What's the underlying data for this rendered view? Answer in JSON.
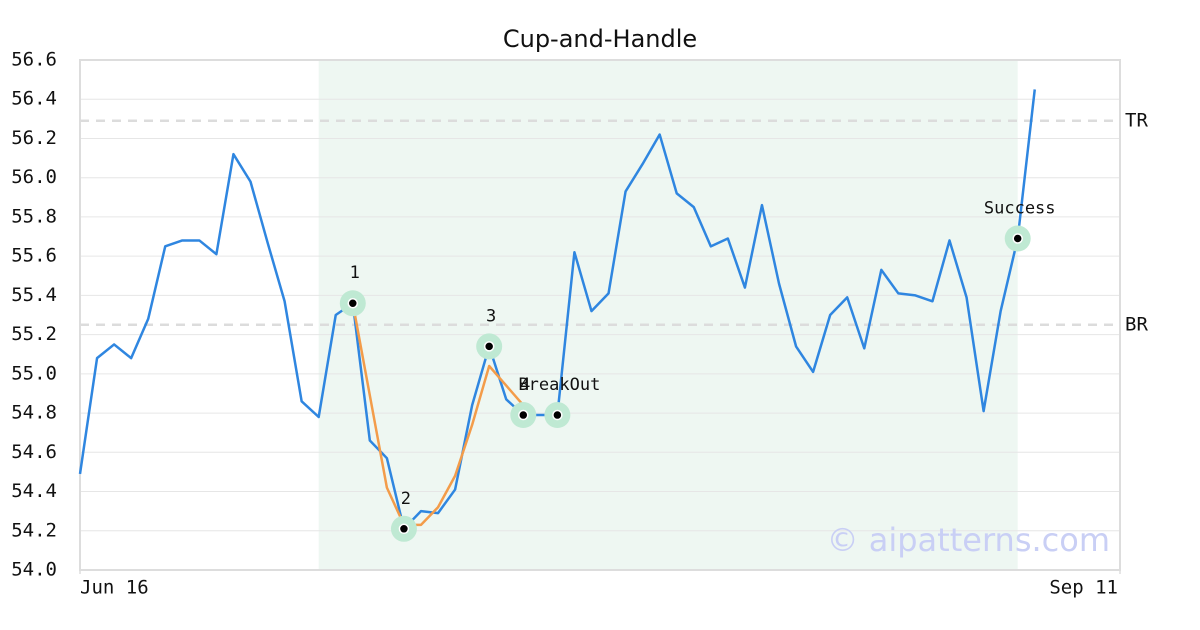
{
  "chart_data": {
    "type": "line",
    "title": "Cup-and-Handle",
    "watermark": "© aipatterns.com",
    "x": [
      0,
      1,
      2,
      3,
      4,
      5,
      6,
      7,
      8,
      9,
      10,
      11,
      12,
      13,
      14,
      15,
      16,
      17,
      18,
      19,
      20,
      21,
      22,
      23,
      24,
      25,
      26,
      27,
      28,
      29,
      30,
      31,
      32,
      33,
      34,
      35,
      36,
      37,
      38,
      39,
      40,
      41,
      42,
      43,
      44,
      45,
      46,
      47,
      48,
      49,
      50,
      51,
      52,
      53,
      54,
      55,
      56
    ],
    "xlim": [
      0,
      61
    ],
    "xticks": [
      {
        "value": 0,
        "label": "Jun 16"
      },
      {
        "value": 61,
        "label": "Sep 11"
      }
    ],
    "ylim": [
      54.0,
      56.6
    ],
    "yticks": [
      {
        "value": 54.0,
        "label": "54.0"
      },
      54.2,
      54.4,
      54.6,
      54.8,
      {
        "value": 55.0,
        "label": "55.0"
      },
      55.2,
      55.4,
      55.6,
      55.8,
      {
        "value": 56.0,
        "label": "56.0"
      },
      56.2,
      56.4,
      56.6
    ],
    "grid": true,
    "series": [
      {
        "color": "#2f86e0",
        "values": [
          54.49,
          55.08,
          55.15,
          55.08,
          55.28,
          55.65,
          55.68,
          55.68,
          55.61,
          56.12,
          55.98,
          55.67,
          55.37,
          54.86,
          54.78,
          55.3,
          55.36,
          54.66,
          54.57,
          54.21,
          54.3,
          54.29,
          54.41,
          54.84,
          55.14,
          54.87,
          54.79,
          54.79,
          54.79,
          55.62,
          55.32,
          55.41,
          55.93,
          56.07,
          56.22,
          55.92,
          55.85,
          55.65,
          55.69,
          55.44,
          55.86,
          55.46,
          55.14,
          55.01,
          55.3,
          55.39,
          55.13,
          55.53,
          55.41,
          55.4,
          55.37,
          55.68,
          55.39,
          54.81,
          55.32,
          55.69,
          56.45
        ]
      },
      {
        "color": "#f39c4a",
        "values": [
          null,
          null,
          null,
          null,
          null,
          null,
          null,
          null,
          null,
          null,
          null,
          null,
          null,
          null,
          null,
          null,
          55.36,
          54.89,
          54.42,
          54.23,
          54.23,
          54.32,
          54.48,
          54.74,
          55.04,
          54.94,
          54.84,
          null,
          null,
          null,
          null,
          null,
          null,
          null,
          null,
          null,
          null,
          null,
          null,
          null,
          null,
          null,
          null,
          null,
          null,
          null,
          null,
          null,
          null,
          null,
          null,
          null,
          null,
          null,
          null,
          null,
          null
        ]
      }
    ],
    "shade": [
      14,
      55
    ],
    "levels": [
      {
        "label": "TR",
        "value": 56.29
      },
      {
        "label": "BR",
        "value": 55.25
      }
    ],
    "points": [
      {
        "label": "1",
        "x": 16,
        "y": 55.36
      },
      {
        "label": "2",
        "x": 19,
        "y": 54.21
      },
      {
        "label": "3",
        "x": 24,
        "y": 55.14
      },
      {
        "label": "4",
        "x": 26,
        "y": 54.79
      },
      {
        "label": "BreakOut",
        "x": 28,
        "y": 54.79
      },
      {
        "label": "Success",
        "x": 55,
        "y": 55.69
      }
    ]
  }
}
